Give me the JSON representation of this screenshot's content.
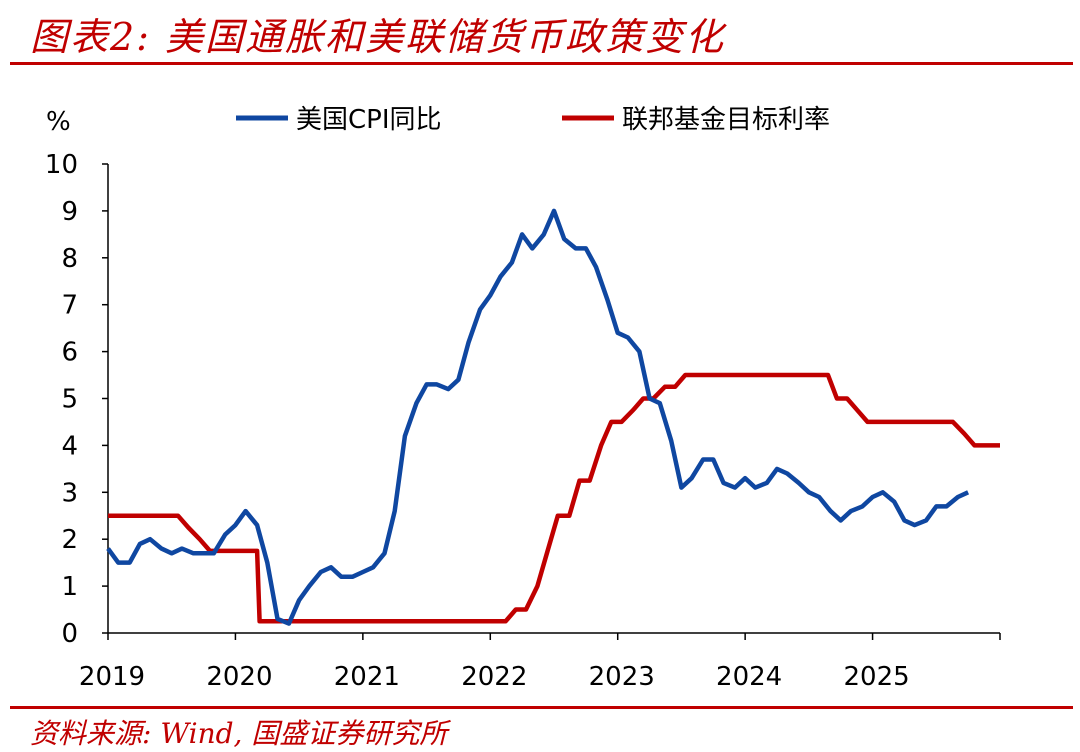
{
  "header": {
    "title": "图表2:  美国通胀和美联储货币政策变化"
  },
  "footer": {
    "source": "资料来源:  Wind,  国盛证券研究所"
  },
  "colors": {
    "accent": "#c00000",
    "cpi": "#0f47a1",
    "fed": "#c00000"
  },
  "chart_data": {
    "type": "line",
    "ylabel": "%",
    "ylim": [
      0,
      10
    ],
    "yticks": [
      "0",
      "1",
      "2",
      "3",
      "4",
      "5",
      "6",
      "7",
      "8",
      "9",
      "10"
    ],
    "xlim": [
      2019,
      2026
    ],
    "xticks": [
      "2019",
      "2020",
      "2021",
      "2022",
      "2023",
      "2024",
      "2025"
    ],
    "legend": "top",
    "grid": false,
    "series": [
      {
        "name": "美国CPI同比",
        "color": "#0f47a1",
        "points": [
          [
            2019.0,
            1.8
          ],
          [
            2019.08,
            1.5
          ],
          [
            2019.17,
            1.5
          ],
          [
            2019.25,
            1.9
          ],
          [
            2019.33,
            2.0
          ],
          [
            2019.42,
            1.8
          ],
          [
            2019.5,
            1.7
          ],
          [
            2019.58,
            1.8
          ],
          [
            2019.67,
            1.7
          ],
          [
            2019.75,
            1.7
          ],
          [
            2019.83,
            1.7
          ],
          [
            2019.92,
            2.1
          ],
          [
            2020.0,
            2.3
          ],
          [
            2020.08,
            2.6
          ],
          [
            2020.17,
            2.3
          ],
          [
            2020.25,
            1.5
          ],
          [
            2020.33,
            0.3
          ],
          [
            2020.42,
            0.2
          ],
          [
            2020.5,
            0.7
          ],
          [
            2020.58,
            1.0
          ],
          [
            2020.67,
            1.3
          ],
          [
            2020.75,
            1.4
          ],
          [
            2020.83,
            1.2
          ],
          [
            2020.92,
            1.2
          ],
          [
            2021.0,
            1.3
          ],
          [
            2021.08,
            1.4
          ],
          [
            2021.17,
            1.7
          ],
          [
            2021.25,
            2.6
          ],
          [
            2021.33,
            4.2
          ],
          [
            2021.42,
            4.9
          ],
          [
            2021.5,
            5.3
          ],
          [
            2021.58,
            5.3
          ],
          [
            2021.67,
            5.2
          ],
          [
            2021.75,
            5.4
          ],
          [
            2021.83,
            6.2
          ],
          [
            2021.92,
            6.9
          ],
          [
            2022.0,
            7.2
          ],
          [
            2022.08,
            7.6
          ],
          [
            2022.17,
            7.9
          ],
          [
            2022.25,
            8.5
          ],
          [
            2022.33,
            8.2
          ],
          [
            2022.42,
            8.5
          ],
          [
            2022.5,
            9.0
          ],
          [
            2022.58,
            8.4
          ],
          [
            2022.67,
            8.2
          ],
          [
            2022.75,
            8.2
          ],
          [
            2022.83,
            7.8
          ],
          [
            2022.92,
            7.1
          ],
          [
            2023.0,
            6.4
          ],
          [
            2023.08,
            6.3
          ],
          [
            2023.17,
            6.0
          ],
          [
            2023.25,
            5.0
          ],
          [
            2023.33,
            4.9
          ],
          [
            2023.42,
            4.1
          ],
          [
            2023.5,
            3.1
          ],
          [
            2023.58,
            3.3
          ],
          [
            2023.67,
            3.7
          ],
          [
            2023.75,
            3.7
          ],
          [
            2023.83,
            3.2
          ],
          [
            2023.92,
            3.1
          ],
          [
            2024.0,
            3.3
          ],
          [
            2024.08,
            3.1
          ],
          [
            2024.17,
            3.2
          ],
          [
            2024.25,
            3.5
          ],
          [
            2024.33,
            3.4
          ],
          [
            2024.42,
            3.2
          ],
          [
            2024.5,
            3.0
          ],
          [
            2024.58,
            2.9
          ],
          [
            2024.67,
            2.6
          ],
          [
            2024.75,
            2.4
          ],
          [
            2024.83,
            2.6
          ],
          [
            2024.92,
            2.7
          ],
          [
            2025.0,
            2.9
          ],
          [
            2025.08,
            3.0
          ],
          [
            2025.17,
            2.8
          ],
          [
            2025.25,
            2.4
          ],
          [
            2025.33,
            2.3
          ],
          [
            2025.42,
            2.4
          ],
          [
            2025.5,
            2.7
          ],
          [
            2025.58,
            2.7
          ],
          [
            2025.67,
            2.9
          ],
          [
            2025.75,
            3.0
          ]
        ]
      },
      {
        "name": "联邦基金目标利率",
        "color": "#c00000",
        "points": [
          [
            2019.0,
            2.5
          ],
          [
            2019.55,
            2.5
          ],
          [
            2019.63,
            2.25
          ],
          [
            2019.72,
            2.0
          ],
          [
            2019.8,
            1.75
          ],
          [
            2020.17,
            1.75
          ],
          [
            2020.19,
            0.25
          ],
          [
            2020.22,
            0.25
          ],
          [
            2022.12,
            0.25
          ],
          [
            2022.2,
            0.5
          ],
          [
            2022.28,
            0.5
          ],
          [
            2022.37,
            1.0
          ],
          [
            2022.45,
            1.75
          ],
          [
            2022.53,
            2.5
          ],
          [
            2022.62,
            2.5
          ],
          [
            2022.7,
            3.25
          ],
          [
            2022.78,
            3.25
          ],
          [
            2022.87,
            4.0
          ],
          [
            2022.95,
            4.5
          ],
          [
            2023.03,
            4.5
          ],
          [
            2023.12,
            4.75
          ],
          [
            2023.2,
            5.0
          ],
          [
            2023.28,
            5.0
          ],
          [
            2023.37,
            5.25
          ],
          [
            2023.45,
            5.25
          ],
          [
            2023.53,
            5.5
          ],
          [
            2024.65,
            5.5
          ],
          [
            2024.72,
            5.0
          ],
          [
            2024.8,
            5.0
          ],
          [
            2024.88,
            4.75
          ],
          [
            2024.96,
            4.5
          ],
          [
            2025.63,
            4.5
          ],
          [
            2025.72,
            4.25
          ],
          [
            2025.8,
            4.0
          ],
          [
            2026.0,
            4.0
          ]
        ]
      }
    ]
  }
}
